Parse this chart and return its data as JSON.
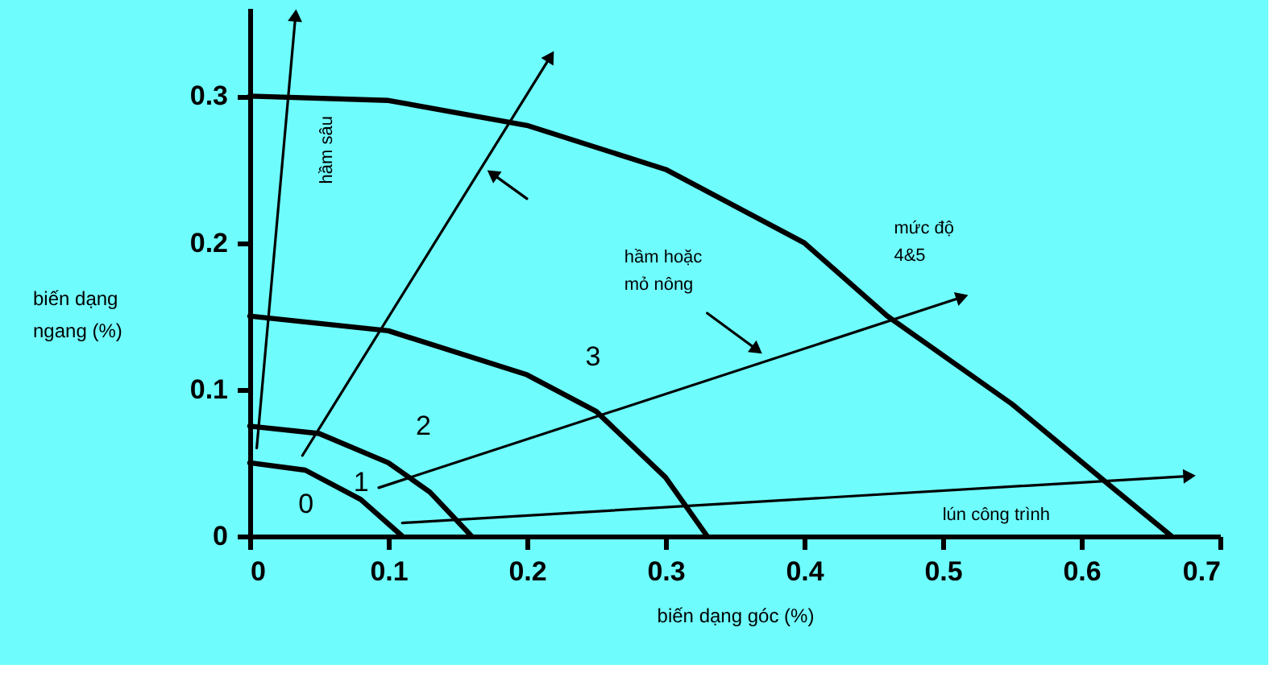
{
  "chart_data": {
    "type": "line",
    "xlabel": "biến dạng góc (%)",
    "ylabel": "biến dạng\nngang (%)",
    "xlim": [
      0,
      0.7
    ],
    "ylim": [
      0,
      0.36
    ],
    "xticks": [
      0,
      0.1,
      0.2,
      0.3,
      0.4,
      0.5,
      0.6,
      0.7
    ],
    "yticks": [
      0,
      0.1,
      0.2,
      0.3
    ],
    "grid": false,
    "series": [
      {
        "color": "#000000",
        "x": [
          0,
          0.1,
          0.2,
          0.3,
          0.4,
          0.46,
          0.55,
          0.62,
          0.665
        ],
        "values": [
          0.3,
          0.297,
          0.28,
          0.25,
          0.2,
          0.15,
          0.09,
          0.035,
          0
        ]
      },
      {
        "color": "#000000",
        "x": [
          0,
          0.1,
          0.2,
          0.25,
          0.3,
          0.33
        ],
        "values": [
          0.15,
          0.14,
          0.11,
          0.085,
          0.04,
          0
        ]
      },
      {
        "color": "#000000",
        "x": [
          0,
          0.05,
          0.1,
          0.13,
          0.16
        ],
        "values": [
          0.075,
          0.07,
          0.05,
          0.03,
          0
        ]
      },
      {
        "color": "#000000",
        "x": [
          0,
          0.04,
          0.08,
          0.11
        ],
        "values": [
          0.05,
          0.045,
          0.025,
          0
        ]
      },
      {
        "color": "#000000",
        "marker": "triangle",
        "x": [
          0.005,
          0.033
        ],
        "values": [
          0.06,
          0.355
        ]
      },
      {
        "color": "#000000",
        "marker": "triangle",
        "x": [
          0.038,
          0.217
        ],
        "values": [
          0.055,
          0.327
        ]
      },
      {
        "color": "#000000",
        "marker": "triangle",
        "x": [
          0.093,
          0.514
        ],
        "values": [
          0.033,
          0.163
        ]
      },
      {
        "color": "#000000",
        "marker": "triangle",
        "x": [
          0.11,
          0.678
        ],
        "values": [
          0.009,
          0.041
        ]
      },
      {
        "color": "#000000",
        "marker": "triangle",
        "x": [
          0.2,
          0.175
        ],
        "values": [
          0.23,
          0.247
        ]
      },
      {
        "color": "#000000",
        "marker": "triangle",
        "x": [
          0.33,
          0.366
        ],
        "values": [
          0.152,
          0.127
        ]
      }
    ],
    "annotations": [
      "0",
      "1",
      "2",
      "3",
      "hầm sâu",
      "hầm hoặc\nmỏ nông",
      "mức độ\n4&5",
      "lún công trình"
    ]
  }
}
